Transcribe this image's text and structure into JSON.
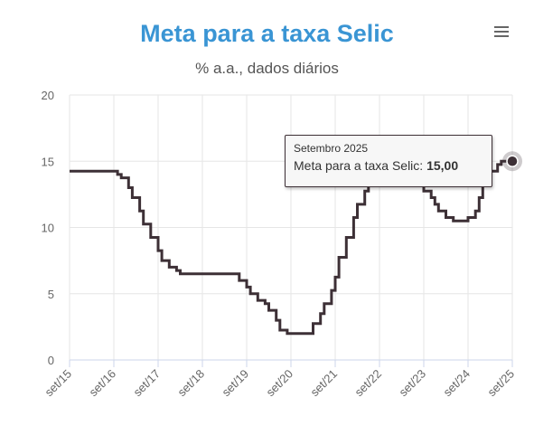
{
  "chart_data": {
    "type": "line",
    "title": "Meta para a taxa Selic",
    "subtitle": "% a.a., dados diários",
    "xlabel": "",
    "ylabel": "",
    "ylim": [
      0,
      20
    ],
    "yticks": [
      0,
      5,
      10,
      15,
      20
    ],
    "xlim": [
      "2015-09",
      "2025-09"
    ],
    "xticks": [
      "set/15",
      "set/16",
      "set/17",
      "set/18",
      "set/19",
      "set/20",
      "set/21",
      "set/22",
      "set/23",
      "set/24",
      "set/25"
    ],
    "grid": true,
    "legend": "none",
    "colors": {
      "line": "#3d3036",
      "title": "#3a95d4",
      "grid": "#e6e6e6"
    },
    "series": [
      {
        "name": "Meta para a taxa Selic",
        "step": true,
        "points": [
          [
            "2015-09",
            14.25
          ],
          [
            "2016-10",
            14.0
          ],
          [
            "2016-11",
            13.75
          ],
          [
            "2017-01",
            13.0
          ],
          [
            "2017-02",
            12.25
          ],
          [
            "2017-04",
            11.25
          ],
          [
            "2017-05",
            10.25
          ],
          [
            "2017-07",
            9.25
          ],
          [
            "2017-09",
            8.25
          ],
          [
            "2017-10",
            7.5
          ],
          [
            "2017-12",
            7.0
          ],
          [
            "2018-02",
            6.75
          ],
          [
            "2018-03",
            6.5
          ],
          [
            "2019-07",
            6.0
          ],
          [
            "2019-09",
            5.5
          ],
          [
            "2019-10",
            5.0
          ],
          [
            "2019-12",
            4.5
          ],
          [
            "2020-02",
            4.25
          ],
          [
            "2020-03",
            3.75
          ],
          [
            "2020-05",
            3.0
          ],
          [
            "2020-06",
            2.25
          ],
          [
            "2020-08",
            2.0
          ],
          [
            "2021-03",
            2.75
          ],
          [
            "2021-05",
            3.5
          ],
          [
            "2021-06",
            4.25
          ],
          [
            "2021-08",
            5.25
          ],
          [
            "2021-09",
            6.25
          ],
          [
            "2021-10",
            7.75
          ],
          [
            "2021-12",
            9.25
          ],
          [
            "2022-02",
            10.75
          ],
          [
            "2022-03",
            11.75
          ],
          [
            "2022-05",
            12.75
          ],
          [
            "2022-06",
            13.25
          ],
          [
            "2022-08",
            13.75
          ],
          [
            "2023-08",
            13.25
          ],
          [
            "2023-09",
            12.75
          ],
          [
            "2023-11",
            12.25
          ],
          [
            "2023-12",
            11.75
          ],
          [
            "2024-01",
            11.25
          ],
          [
            "2024-03",
            10.75
          ],
          [
            "2024-05",
            10.5
          ],
          [
            "2024-09",
            10.75
          ],
          [
            "2024-11",
            11.25
          ],
          [
            "2024-12",
            12.25
          ],
          [
            "2025-01",
            13.25
          ],
          [
            "2025-03",
            14.25
          ],
          [
            "2025-05",
            14.75
          ],
          [
            "2025-06",
            15.0
          ],
          [
            "2025-09",
            15.0
          ]
        ]
      }
    ],
    "tooltip": {
      "date": "Setembro 2025",
      "series_label": "Meta para a taxa Selic:",
      "value": "15,00",
      "x": "2025-09",
      "y": 15.0
    }
  },
  "menu": {
    "icon": "hamburger-menu-icon"
  }
}
